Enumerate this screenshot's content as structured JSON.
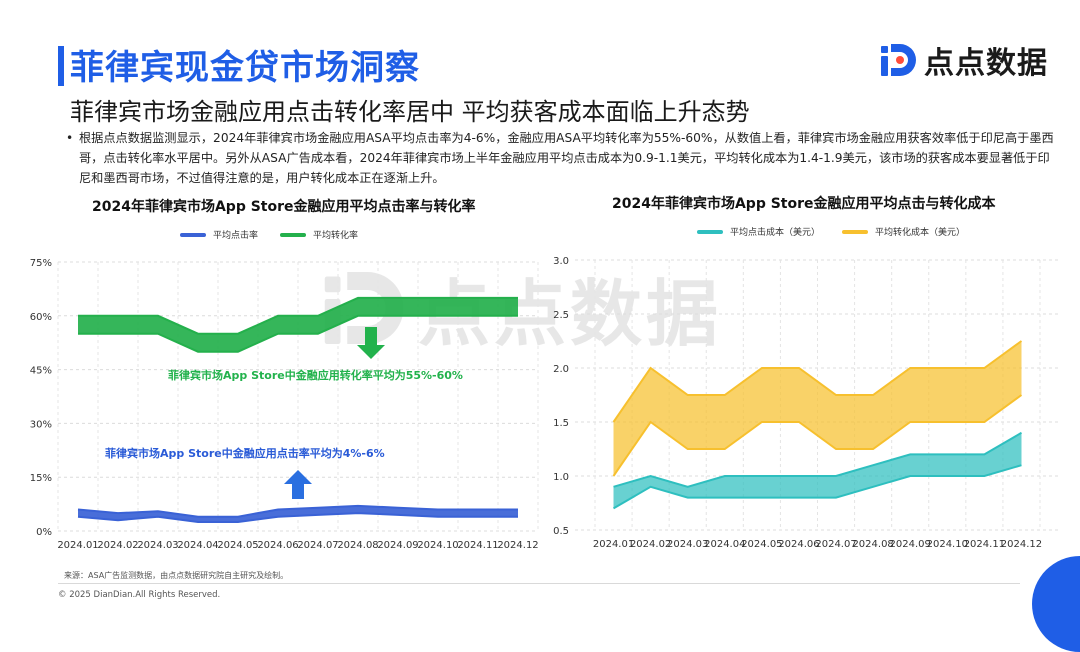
{
  "header": {
    "title": "菲律宾现金贷市场洞察",
    "subtitle": "菲律宾市场金融应用点击转化率居中 平均获客成本面临上升态势",
    "logo_text": "点点数据",
    "logo_icon": "diandian-logo-icon"
  },
  "bullet": {
    "marker": "•",
    "text": "根据点点数据监测显示，2024年菲律宾市场金融应用ASA平均点击率为4-6%，金融应用ASA平均转化率为55%-60%，从数值上看，菲律宾市场金融应用获客效率低于印尼高于墨西哥，点击转化率水平居中。另外从ASA广告成本看，2024年菲律宾市场上半年金融应用平均点击成本为0.9-1.1美元，平均转化成本为1.4-1.9美元，该市场的获客成本要显著低于印尼和墨西哥市场，不过值得注意的是，用户转化成本正在逐渐上升。"
  },
  "watermark_text": "点点数据",
  "annotations": {
    "green": "菲律宾市场App Store中金融应用转化率平均为55%-60%",
    "blue": "菲律宾市场App Store中金融应用点击率平均为4%-6%"
  },
  "colors": {
    "brand": "#1f5ee6",
    "ctr": "#3a62d6",
    "cvr": "#24b04c",
    "cpc": "#2ebfbf",
    "cpa": "#f7c02e",
    "arrow_green": "#22b24c",
    "arrow_blue": "#2a6fe0"
  },
  "chart_data": [
    {
      "type": "area",
      "title": "2024年菲律宾市场App Store金融应用平均点击率与转化率",
      "categories": [
        "2024.01",
        "2024.02",
        "2024.03",
        "2024.04",
        "2024.05",
        "2024.06",
        "2024.07",
        "2024.08",
        "2024.09",
        "2024.10",
        "2024.11",
        "2024.12"
      ],
      "ylim": [
        0,
        75
      ],
      "yticks": [
        "0%",
        "15%",
        "30%",
        "45%",
        "60%",
        "75%"
      ],
      "grid": true,
      "legend_position": "top-center",
      "series": [
        {
          "name": "平均点击率",
          "color": "#3a62d6",
          "low": [
            4,
            3,
            4,
            2.5,
            2.5,
            4,
            4.5,
            5,
            4.5,
            4,
            4,
            4
          ],
          "high": [
            6,
            5,
            5.5,
            4,
            4,
            6,
            6.5,
            7,
            6.5,
            6,
            6,
            6
          ]
        },
        {
          "name": "平均转化率",
          "color": "#24b04c",
          "low": [
            55,
            55,
            55,
            50,
            50,
            55,
            55,
            60,
            60,
            60,
            60,
            60
          ],
          "high": [
            60,
            60,
            60,
            55,
            55,
            60,
            60,
            65,
            65,
            65,
            65,
            65
          ]
        }
      ]
    },
    {
      "type": "area",
      "title": "2024年菲律宾市场App Store金融应用平均点击与转化成本",
      "categories": [
        "2024.01",
        "2024.02",
        "2024.03",
        "2024.04",
        "2024.05",
        "2024.06",
        "2024.07",
        "2024.08",
        "2024.09",
        "2024.10",
        "2024.11",
        "2024.12"
      ],
      "ylim": [
        0.5,
        3.0
      ],
      "yticks": [
        "0.5",
        "1.0",
        "1.5",
        "2.0",
        "2.5",
        "3.0"
      ],
      "grid": true,
      "legend_position": "top-center",
      "series": [
        {
          "name": "平均点击成本（美元）",
          "color": "#2ebfbf",
          "low": [
            0.7,
            0.9,
            0.8,
            0.8,
            0.8,
            0.8,
            0.8,
            0.9,
            1.0,
            1.0,
            1.0,
            1.1
          ],
          "high": [
            0.9,
            1.0,
            0.9,
            1.0,
            1.0,
            1.0,
            1.0,
            1.1,
            1.2,
            1.2,
            1.2,
            1.4
          ]
        },
        {
          "name": "平均转化成本（美元）",
          "color": "#f7c02e",
          "low": [
            1.0,
            1.5,
            1.25,
            1.25,
            1.5,
            1.5,
            1.25,
            1.25,
            1.5,
            1.5,
            1.5,
            1.75
          ],
          "high": [
            1.5,
            2.0,
            1.75,
            1.75,
            2.0,
            2.0,
            1.75,
            1.75,
            2.0,
            2.0,
            2.0,
            2.25
          ]
        }
      ]
    }
  ],
  "footer": {
    "source": "来源：ASA广告监测数据，由点点数据研究院自主研究及绘制。",
    "copyright": "© 2025 DianDian.All Rights Reserved."
  }
}
